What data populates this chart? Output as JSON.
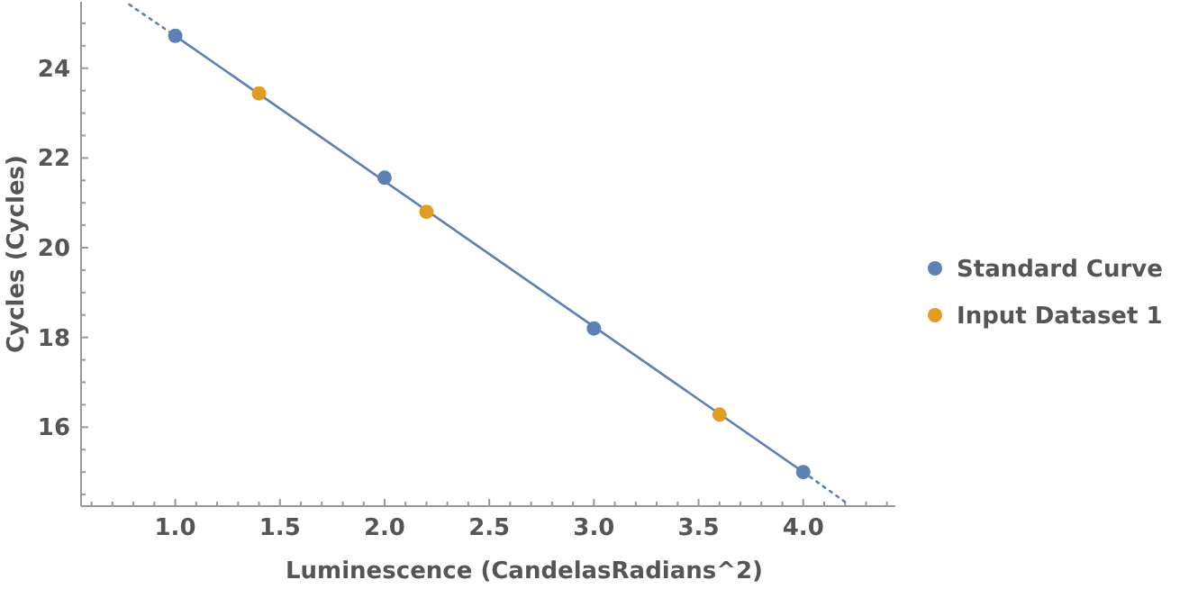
{
  "chart_data": {
    "type": "scatter",
    "xlabel": "Luminescence  (CandelasRadians^2)",
    "ylabel": "Cycles  (Cycles)",
    "legend": "right",
    "marker": "circle",
    "grid": false,
    "xlim": [
      0.55,
      4.44
    ],
    "ylim": [
      14.24,
      25.48
    ],
    "xticks": [
      {
        "value": 0.6,
        "label": null
      },
      {
        "value": 0.7,
        "label": null
      },
      {
        "value": 0.8,
        "label": null
      },
      {
        "value": 0.9,
        "label": null
      },
      {
        "value": 1,
        "label": "1.0"
      },
      {
        "value": 1.1,
        "label": null
      },
      {
        "value": 1.2,
        "label": null
      },
      {
        "value": 1.3,
        "label": null
      },
      {
        "value": 1.4,
        "label": null
      },
      {
        "value": 1.5,
        "label": "1.5"
      },
      {
        "value": 1.6,
        "label": null
      },
      {
        "value": 1.7,
        "label": null
      },
      {
        "value": 1.8,
        "label": null
      },
      {
        "value": 1.9,
        "label": null
      },
      {
        "value": 2,
        "label": "2.0"
      },
      {
        "value": 2.1,
        "label": null
      },
      {
        "value": 2.2,
        "label": null
      },
      {
        "value": 2.3,
        "label": null
      },
      {
        "value": 2.4,
        "label": null
      },
      {
        "value": 2.5,
        "label": "2.5"
      },
      {
        "value": 2.6,
        "label": null
      },
      {
        "value": 2.7,
        "label": null
      },
      {
        "value": 2.8,
        "label": null
      },
      {
        "value": 2.9,
        "label": null
      },
      {
        "value": 3,
        "label": "3.0"
      },
      {
        "value": 3.1,
        "label": null
      },
      {
        "value": 3.2,
        "label": null
      },
      {
        "value": 3.3,
        "label": null
      },
      {
        "value": 3.4,
        "label": null
      },
      {
        "value": 3.5,
        "label": "3.5"
      },
      {
        "value": 3.6,
        "label": null
      },
      {
        "value": 3.7,
        "label": null
      },
      {
        "value": 3.8,
        "label": null
      },
      {
        "value": 3.9,
        "label": null
      },
      {
        "value": 4,
        "label": "4.0"
      },
      {
        "value": 4.1,
        "label": null
      },
      {
        "value": 4.2,
        "label": null
      },
      {
        "value": 4.3,
        "label": null
      },
      {
        "value": 4.4,
        "label": null
      }
    ],
    "yticks": [
      {
        "value": 14.5,
        "label": null
      },
      {
        "value": 15,
        "label": null
      },
      {
        "value": 15.5,
        "label": null
      },
      16,
      {
        "value": 16.5,
        "label": null
      },
      {
        "value": 17,
        "label": null
      },
      {
        "value": 17.5,
        "label": null
      },
      18,
      {
        "value": 18.5,
        "label": null
      },
      {
        "value": 19,
        "label": null
      },
      {
        "value": 19.5,
        "label": null
      },
      20,
      {
        "value": 20.5,
        "label": null
      },
      {
        "value": 21,
        "label": null
      },
      {
        "value": 21.5,
        "label": null
      },
      22,
      {
        "value": 22.5,
        "label": null
      },
      {
        "value": 23,
        "label": null
      },
      {
        "value": 23.5,
        "label": null
      },
      24,
      {
        "value": 24.5,
        "label": null
      },
      {
        "value": 25,
        "label": null
      }
    ],
    "series": [
      {
        "type": "line",
        "color": "#5e81b5",
        "line_style": "dotted",
        "marker": "none",
        "x": [
          0.78,
          1
        ],
        "values": [
          25.42,
          24.72
        ]
      },
      {
        "type": "line",
        "color": "#5e81b5",
        "line_style": "solid",
        "marker": "none",
        "x": [
          1,
          4
        ],
        "values": [
          24.72,
          15.0
        ]
      },
      {
        "type": "line",
        "color": "#5e81b5",
        "line_style": "dotted",
        "marker": "none",
        "x": [
          4,
          4.21
        ],
        "values": [
          15.0,
          14.3
        ]
      },
      {
        "name": "Standard Curve",
        "color": "#5e81b5",
        "x": [
          1,
          2,
          3,
          4
        ],
        "values": [
          24.72,
          21.56,
          18.2,
          15.0
        ]
      },
      {
        "name": "Input Dataset 1",
        "color": "#e19c24",
        "x": [
          1.4,
          2.2,
          3.6
        ],
        "values": [
          23.44,
          20.8,
          16.28
        ]
      }
    ]
  }
}
